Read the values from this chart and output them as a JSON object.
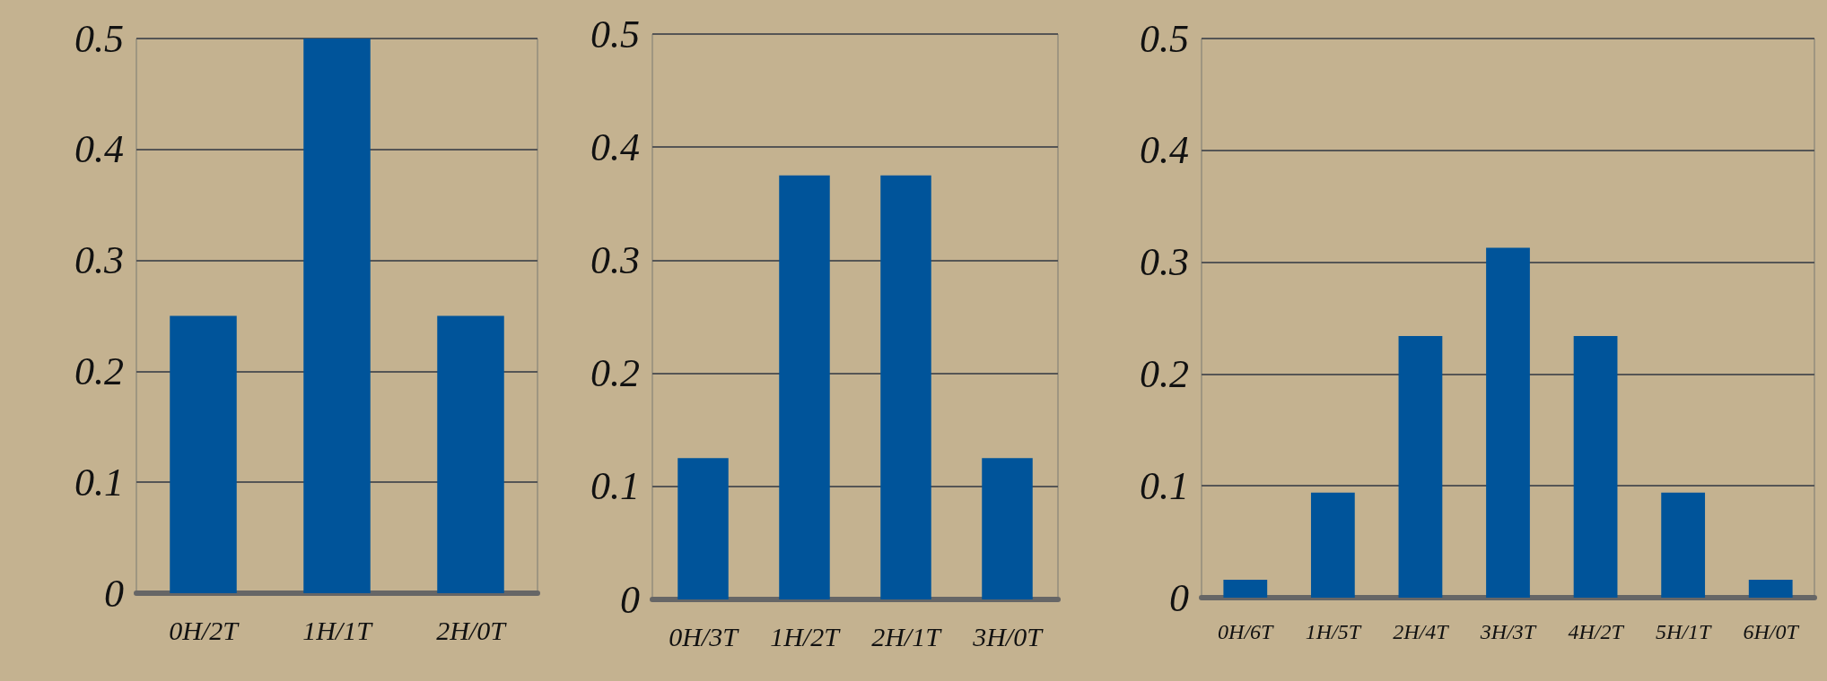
{
  "chart_data": [
    {
      "type": "bar",
      "categories": [
        "0H/2T",
        "1H/1T",
        "2H/0T"
      ],
      "values": [
        0.25,
        0.5,
        0.25
      ],
      "color": "#00549a",
      "ylim": [
        0,
        0.5
      ],
      "yticks": [
        0,
        0.1,
        0.2,
        0.3,
        0.4,
        0.5
      ],
      "grid": "y"
    },
    {
      "type": "bar",
      "categories": [
        "0H/3T",
        "1H/2T",
        "2H/1T",
        "3H/0T"
      ],
      "values": [
        0.125,
        0.375,
        0.375,
        0.125
      ],
      "color": "#00549a",
      "ylim": [
        0,
        0.5
      ],
      "yticks": [
        0,
        0.1,
        0.2,
        0.3,
        0.4,
        0.5
      ],
      "grid": "y"
    },
    {
      "type": "bar",
      "categories": [
        "0H/6T",
        "1H/5T",
        "2H/4T",
        "3H/3T",
        "4H/2T",
        "5H/1T",
        "6H/0T"
      ],
      "values": [
        0.016,
        0.094,
        0.234,
        0.313,
        0.234,
        0.094,
        0.016
      ],
      "color": "#00549a",
      "ylim": [
        0,
        0.5
      ],
      "yticks": [
        0,
        0.1,
        0.2,
        0.3,
        0.4,
        0.5
      ],
      "grid": "y"
    }
  ]
}
